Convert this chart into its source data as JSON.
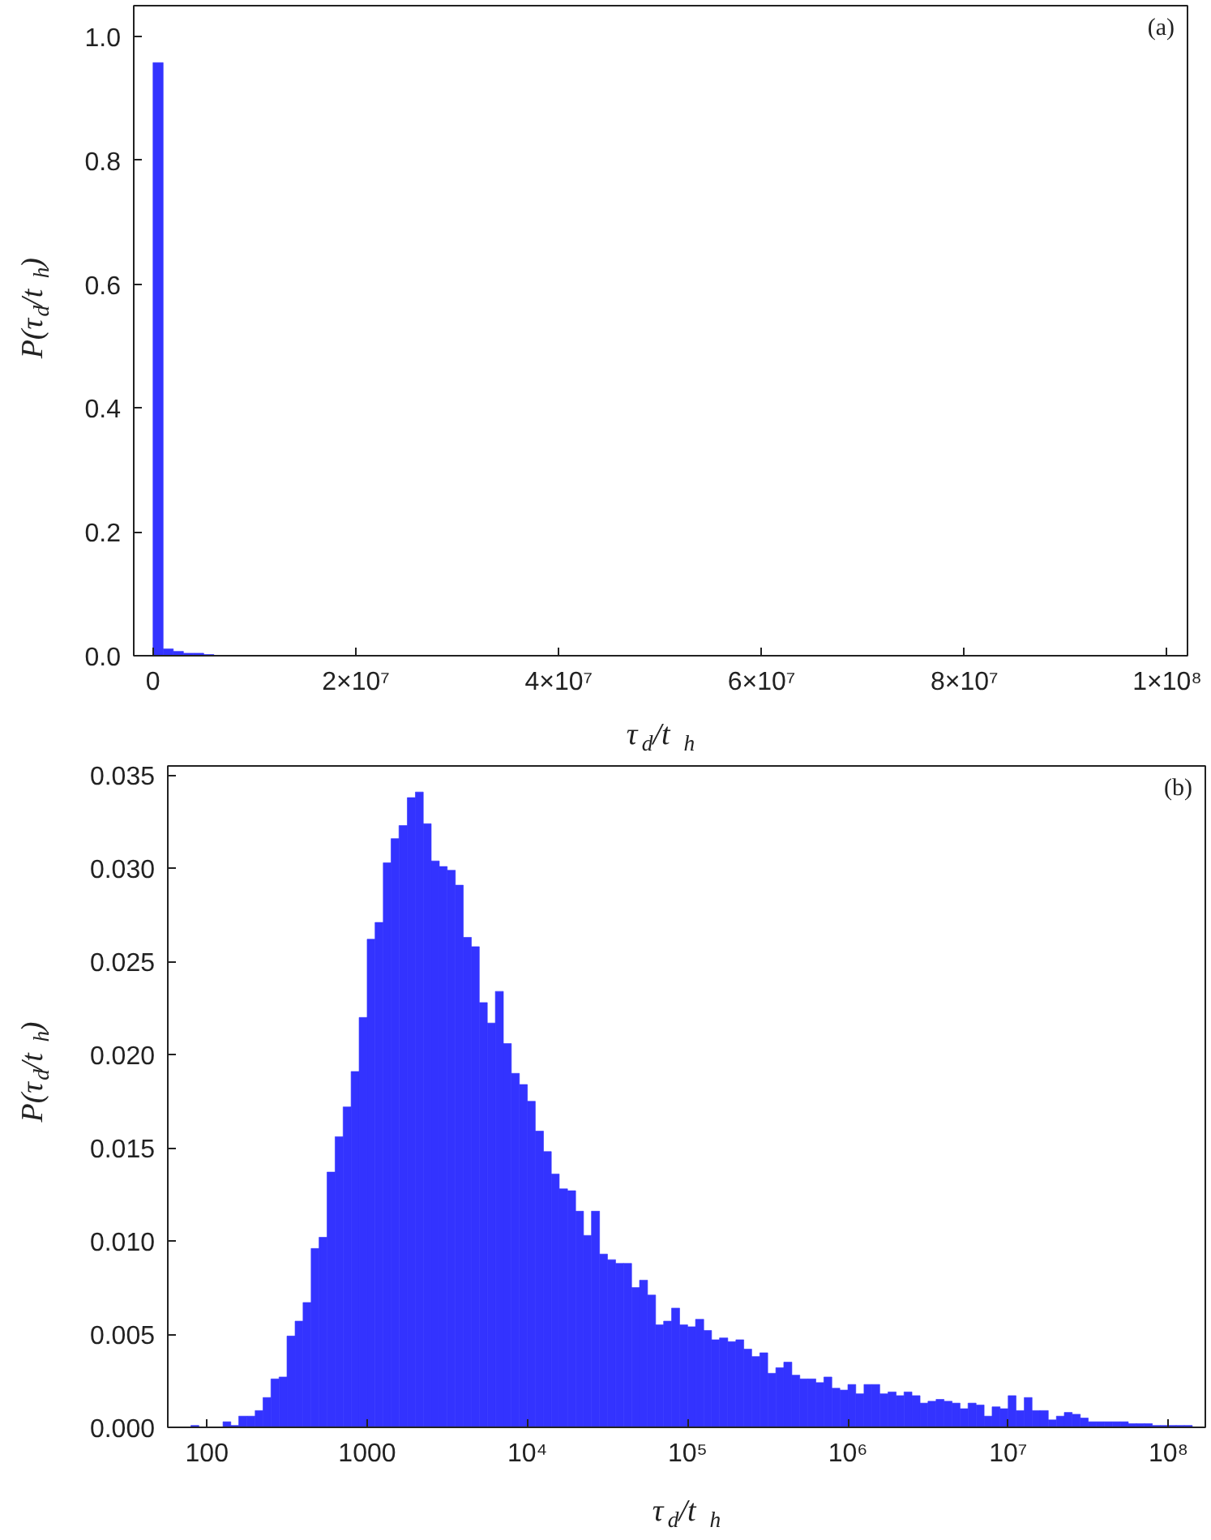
{
  "chart_data": [
    {
      "type": "histogram",
      "bins": [
        0,
        1000000,
        2000000,
        3000000,
        4000000,
        5000000,
        6000000
      ],
      "values": [
        0.958,
        0.011,
        0.007,
        0.004,
        0.004,
        0.002
      ],
      "color": "#3333ff",
      "xlim": [
        -1900000,
        102000000
      ],
      "ylim": [
        0,
        1.05
      ],
      "xticks": [
        {
          "value": 0,
          "label": "0"
        },
        {
          "value": 20000000,
          "label": "2×10⁷"
        },
        {
          "value": 40000000,
          "label": "4×10⁷"
        },
        {
          "value": 60000000,
          "label": "6×10⁷"
        },
        {
          "value": 80000000,
          "label": "8×10⁷"
        },
        {
          "value": 100000000,
          "label": "1×10⁸"
        }
      ],
      "yticks": [
        {
          "value": 0,
          "label": "0.0"
        },
        {
          "value": 0.2,
          "label": "0.2"
        },
        {
          "value": 0.4,
          "label": "0.4"
        },
        {
          "value": 0.6,
          "label": "0.6"
        },
        {
          "value": 0.8,
          "label": "0.8"
        },
        {
          "value": 1,
          "label": "1.0"
        }
      ],
      "xlabel": "τ$_{d}$/t$_{h}$",
      "ylabel": "P(τ$_{d}$/t$_{h}$)",
      "annotations": [
        "(a)"
      ]
    },
    {
      "type": "histogram",
      "log": "x",
      "color": "#3333ff",
      "bins": [
        79.4,
        89.1,
        100,
        112,
        126,
        141,
        158,
        178,
        200,
        224,
        251,
        282,
        316,
        355,
        398,
        447,
        501,
        562,
        631,
        708,
        794,
        891,
        1000,
        1120,
        1260,
        1410,
        1580,
        1780,
        2000,
        2240,
        2510,
        2820,
        3160,
        3550,
        3980,
        4470,
        5010,
        5620,
        6310,
        7080,
        7940,
        8910,
        10000,
        11200,
        12600,
        14100,
        15800,
        17800,
        20000,
        22400,
        25100,
        28200,
        31600,
        35500,
        39800,
        44700,
        50100,
        56200,
        63100,
        70800,
        79400,
        89100,
        100000,
        112000,
        126000,
        141000,
        158000,
        178000,
        200000,
        224000,
        251000,
        282000,
        316000,
        355000,
        398000,
        447000,
        501000,
        562000,
        631000,
        708000,
        794000,
        891000,
        1000000,
        1120000,
        1260000,
        1410000,
        1580000,
        1780000,
        2000000,
        2240000,
        2510000,
        2820000,
        3160000,
        3550000,
        3980000,
        4470000,
        5010000,
        5620000,
        6310000,
        7080000,
        7940000,
        8910000,
        10000000,
        11200000,
        12600000,
        14100000,
        15800000,
        17800000,
        20000000,
        22400000,
        25100000,
        28200000,
        31600000,
        35500000,
        39800000,
        44700000,
        50100000,
        56200000,
        63100000,
        70800000,
        79400000,
        89100000,
        100000000,
        112000000,
        126000000,
        141000000
      ],
      "values": [
        0.0001,
        0,
        0,
        0,
        0.0003,
        0.0001,
        0.0006,
        0.0006,
        0.0009,
        0.0016,
        0.0026,
        0.0027,
        0.0049,
        0.0057,
        0.0067,
        0.0096,
        0.0102,
        0.0137,
        0.0156,
        0.0172,
        0.0191,
        0.022,
        0.0262,
        0.0271,
        0.0303,
        0.0316,
        0.0323,
        0.0338,
        0.0341,
        0.0324,
        0.0304,
        0.0301,
        0.0299,
        0.0291,
        0.0263,
        0.0258,
        0.0228,
        0.0217,
        0.0234,
        0.0206,
        0.019,
        0.0184,
        0.0175,
        0.0159,
        0.0148,
        0.0136,
        0.0128,
        0.0127,
        0.0116,
        0.0103,
        0.0116,
        0.0093,
        0.009,
        0.0088,
        0.0088,
        0.0075,
        0.0079,
        0.0071,
        0.0055,
        0.0057,
        0.0064,
        0.0055,
        0.0054,
        0.0058,
        0.0052,
        0.0047,
        0.0048,
        0.0046,
        0.0047,
        0.0042,
        0.0038,
        0.004,
        0.0029,
        0.0032,
        0.0035,
        0.0028,
        0.0026,
        0.0026,
        0.0024,
        0.0027,
        0.0021,
        0.002,
        0.0023,
        0.0018,
        0.0023,
        0.0023,
        0.0018,
        0.0019,
        0.0017,
        0.0019,
        0.0017,
        0.0013,
        0.0014,
        0.0015,
        0.0014,
        0.0013,
        0.001,
        0.0013,
        0.0012,
        0.0006,
        0.0011,
        0.001,
        0.0017,
        0.0009,
        0.0016,
        0.0009,
        0.0009,
        0.0004,
        0.0006,
        0.0008,
        0.0007,
        0.0005,
        0.0003,
        0.0003,
        0.0003,
        0.0003,
        0.0003,
        0.0002,
        0.0002,
        0.0002,
        0.0001,
        0.0001,
        0.0001,
        0.0001,
        0.0001
      ],
      "xlim": [
        57,
        170000000
      ],
      "ylim": [
        0,
        0.0355
      ],
      "xticks": [
        100,
        1000,
        {
          "value": 10000,
          "label": "10⁴"
        },
        {
          "value": 100000,
          "label": "10⁵"
        },
        {
          "value": 1000000,
          "label": "10⁶"
        },
        {
          "value": 10000000,
          "label": "10⁷"
        },
        {
          "value": 100000000,
          "label": "10⁸"
        }
      ],
      "yticks": [
        {
          "value": 0,
          "label": "0.000"
        },
        {
          "value": 0.005,
          "label": "0.005"
        },
        {
          "value": 0.01,
          "label": "0.010"
        },
        {
          "value": 0.015,
          "label": "0.015"
        },
        {
          "value": 0.02,
          "label": "0.020"
        },
        {
          "value": 0.025,
          "label": "0.025"
        },
        {
          "value": 0.03,
          "label": "0.030"
        },
        {
          "value": 0.035,
          "label": "0.035"
        }
      ],
      "xlabel": "τ$_{d}$/t$_{h}$",
      "ylabel": "P(τ$_{d}$/t$_{h}$)",
      "annotations": [
        "(b)"
      ]
    }
  ]
}
